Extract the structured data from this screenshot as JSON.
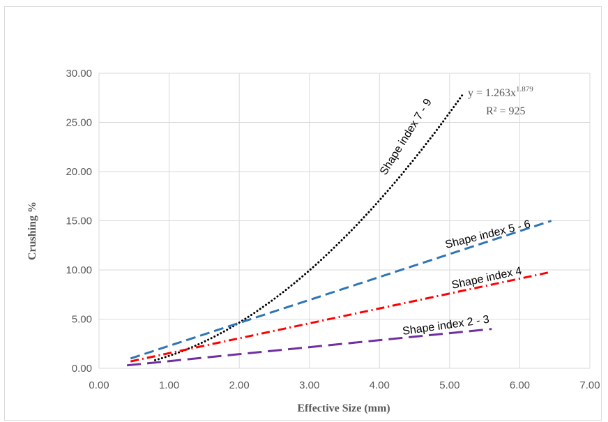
{
  "chart_data": {
    "type": "line",
    "title": "",
    "xlabel": "Effective Size (mm)",
    "ylabel": "Crushing %",
    "xlim": [
      0,
      7
    ],
    "ylim": [
      0,
      30
    ],
    "x_ticks": [
      "0.00",
      "1.00",
      "2.00",
      "3.00",
      "4.00",
      "5.00",
      "6.00",
      "7.00"
    ],
    "y_ticks": [
      "0.00",
      "5.00",
      "10.00",
      "15.00",
      "20.00",
      "25.00",
      "30.00"
    ],
    "grid": true,
    "legend": "none",
    "series": [
      {
        "label": "Shape index 7 - 9",
        "style": "dotted",
        "color": "#000000",
        "fit": {
          "type": "power",
          "a": 1.263,
          "b": 1.879
        },
        "x": [
          0.8,
          1.0,
          1.5,
          2.0,
          2.5,
          3.0,
          3.5,
          4.0,
          4.5,
          5.0,
          5.2
        ],
        "y": [
          0.83,
          1.26,
          2.7,
          4.64,
          7.06,
          9.94,
          13.28,
          17.07,
          21.29,
          25.94,
          27.95
        ]
      },
      {
        "label": "Shape index 5 - 6",
        "style": "dashed",
        "color": "#2e75b6",
        "x": [
          0.45,
          6.45
        ],
        "y": [
          1.0,
          15.0
        ]
      },
      {
        "label": "Shape index 4",
        "style": "dash-dot",
        "color": "#ff0000",
        "x": [
          0.45,
          6.45
        ],
        "y": [
          0.7,
          9.8
        ]
      },
      {
        "label": "Shape index 2 - 3",
        "style": "long-dash",
        "color": "#7030a0",
        "x": [
          0.4,
          5.6
        ],
        "y": [
          0.3,
          4.0
        ]
      }
    ],
    "annotations": {
      "equation_prefix": "y = 1.263x",
      "equation_exponent": "1.879",
      "r_squared": "R² = 925"
    }
  }
}
